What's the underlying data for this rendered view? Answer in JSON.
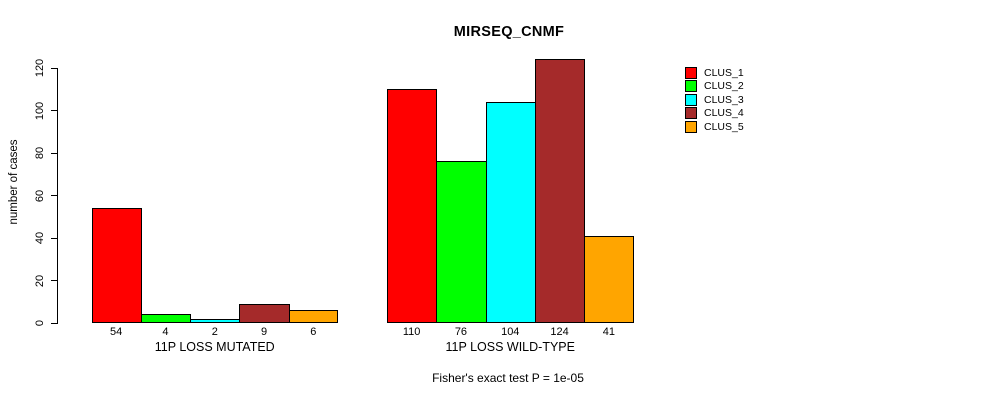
{
  "title": "MIRSEQ_CNMF",
  "footer": {
    "caption": "Fisher's exact test P = 1e-05"
  },
  "chart_data": {
    "type": "bar",
    "title": "MIRSEQ_CNMF",
    "categories": [
      "11P LOSS MUTATED",
      "11P LOSS WILD-TYPE"
    ],
    "series": [
      {
        "name": "CLUS_1",
        "color": "#FF0000",
        "values": [
          54,
          110
        ]
      },
      {
        "name": "CLUS_2",
        "color": "#00FF00",
        "values": [
          4,
          76
        ]
      },
      {
        "name": "CLUS_3",
        "color": "#00FFFF",
        "values": [
          2,
          104
        ]
      },
      {
        "name": "CLUS_4",
        "color": "#A52A2A",
        "values": [
          9,
          124
        ]
      },
      {
        "name": "CLUS_5",
        "color": "#FFA500",
        "values": [
          6,
          41
        ]
      }
    ],
    "ylabel": "number of cases",
    "xlabel": "",
    "yticks": [
      0,
      20,
      40,
      60,
      80,
      100,
      120
    ],
    "ylim": [
      0,
      124
    ],
    "bar_value_labels": true,
    "grid": false,
    "legend": {
      "position": "right",
      "entries": [
        "CLUS_1",
        "CLUS_2",
        "CLUS_3",
        "CLUS_4",
        "CLUS_5"
      ]
    },
    "annotation": "Fisher's exact test P = 1e-05"
  }
}
